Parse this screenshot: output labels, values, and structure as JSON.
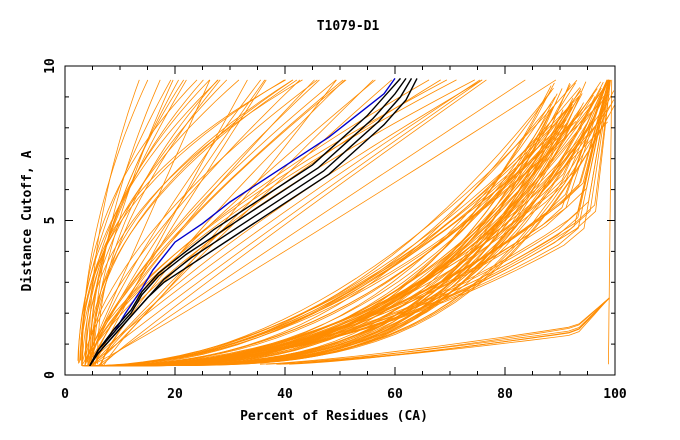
{
  "chart_data": {
    "type": "line",
    "title": "T1079-D1",
    "xlabel": "Percent of Residues (CA)",
    "ylabel": "Distance Cutoff, A",
    "xlim": [
      0,
      100
    ],
    "ylim": [
      0,
      10
    ],
    "x_ticks": [
      "0",
      "20",
      "40",
      "60",
      "80",
      "100"
    ],
    "y_ticks": [
      "0",
      "5",
      "10"
    ],
    "grid": false,
    "legend": "none",
    "colors": {
      "orange": "#ff8c00",
      "blue": "#0000cc",
      "black": "#000000"
    },
    "series": [
      {
        "color": "blue",
        "x": [
          4.5,
          6,
          9,
          11,
          14,
          16,
          20,
          25,
          30,
          36,
          42,
          48,
          53,
          58,
          60
        ],
        "y": [
          0.3,
          0.8,
          1.4,
          2.0,
          2.8,
          3.4,
          4.3,
          4.9,
          5.6,
          6.3,
          7.0,
          7.7,
          8.4,
          9.1,
          9.6
        ]
      },
      {
        "color": "black",
        "x": [
          4.5,
          6,
          9,
          12,
          14,
          17,
          22,
          28,
          34,
          40,
          46,
          51,
          56,
          60,
          62
        ],
        "y": [
          0.3,
          0.8,
          1.4,
          2.0,
          2.6,
          3.2,
          3.9,
          4.6,
          5.3,
          6.0,
          6.7,
          7.5,
          8.3,
          9.1,
          9.6
        ]
      },
      {
        "color": "black",
        "x": [
          4.5,
          6,
          9,
          12,
          15,
          18,
          23,
          29,
          35,
          41,
          47,
          52,
          57,
          61,
          63
        ],
        "y": [
          0.3,
          0.7,
          1.3,
          1.9,
          2.5,
          3.1,
          3.8,
          4.5,
          5.2,
          5.9,
          6.6,
          7.4,
          8.2,
          9.0,
          9.6
        ]
      },
      {
        "color": "black",
        "x": [
          4.5,
          6,
          9,
          12,
          15,
          18,
          24,
          30,
          36,
          42,
          48,
          53,
          58,
          62,
          64
        ],
        "y": [
          0.3,
          0.7,
          1.3,
          1.9,
          2.5,
          3.0,
          3.7,
          4.4,
          5.1,
          5.8,
          6.5,
          7.3,
          8.1,
          8.9,
          9.6
        ]
      },
      {
        "color": "black",
        "x": [
          4.5,
          6,
          9,
          12,
          14,
          17,
          22,
          27,
          33,
          39,
          45,
          50,
          55,
          59,
          61
        ],
        "y": [
          0.3,
          0.8,
          1.5,
          2.1,
          2.7,
          3.3,
          4.0,
          4.7,
          5.4,
          6.1,
          6.8,
          7.6,
          8.4,
          9.2,
          9.6
        ]
      }
    ]
  }
}
